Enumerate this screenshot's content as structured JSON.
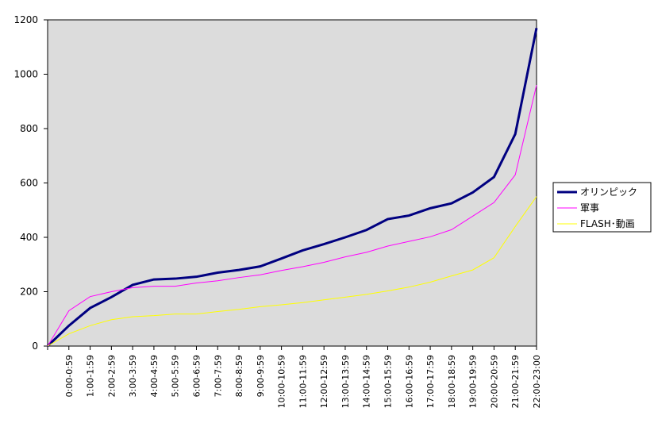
{
  "chart_data": {
    "type": "line",
    "categories": [
      null,
      "0:00-0:59",
      "1:00-1:59",
      "2:00-2:59",
      "3:00-3:59",
      "4:00-4:59",
      "5:00-5:59",
      "6:00-6:59",
      "7:00-7:59",
      "8:00-8:59",
      "9:00-9:59",
      "10:00-10:59",
      "11:00-11:59",
      "12:00-12:59",
      "13:00-13:59",
      "14:00-14:59",
      "15:00-15:59",
      "16:00-16:59",
      "17:00-17:59",
      "18:00-18:59",
      "19:00-19:59",
      "20:00-20:59",
      "21:00-21:59",
      "22:00-23:00"
    ],
    "series": [
      {
        "name": "オリンピック",
        "color": "#000080",
        "values": [
          0,
          75,
          140,
          180,
          225,
          245,
          248,
          255,
          270,
          280,
          293,
          322,
          352,
          375,
          400,
          427,
          467,
          480,
          507,
          525,
          565,
          622,
          780,
          1170
        ]
      },
      {
        "name": "軍事",
        "color": "#ff00ff",
        "values": [
          0,
          130,
          182,
          200,
          215,
          220,
          220,
          232,
          240,
          252,
          262,
          278,
          292,
          308,
          328,
          345,
          368,
          385,
          402,
          428,
          478,
          528,
          630,
          960
        ]
      },
      {
        "name": "FLASH･動画",
        "color": "#ffff00",
        "values": [
          0,
          45,
          75,
          97,
          108,
          112,
          118,
          118,
          127,
          135,
          145,
          152,
          160,
          170,
          180,
          190,
          203,
          217,
          235,
          258,
          280,
          325,
          440,
          550
        ]
      }
    ],
    "ylim": [
      0,
      1200
    ],
    "yticks": [
      0,
      200,
      400,
      600,
      800,
      1000,
      1200
    ],
    "legend": "right"
  }
}
